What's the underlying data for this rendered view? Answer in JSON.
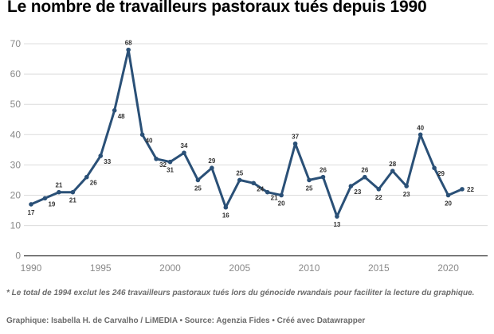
{
  "title": "Le nombre de travailleurs pastoraux tués depuis 1990",
  "footnote": "* Le total de 1994 exclut les 246 travailleurs pastoraux tués lors du génocide rwandais pour faciliter la lecture du graphique.",
  "byline": "Graphique: Isabella H. de Carvalho / LiMEDIA • Source: Agenzia Fides • Créé avec Datawrapper",
  "chart_data": {
    "type": "line",
    "title": "Le nombre de travailleurs pastoraux tués depuis 1990",
    "x": [
      1990,
      1991,
      1992,
      1993,
      1994,
      1995,
      1996,
      1997,
      1998,
      1999,
      2000,
      2001,
      2002,
      2003,
      2004,
      2005,
      2006,
      2007,
      2008,
      2009,
      2010,
      2011,
      2012,
      2013,
      2014,
      2015,
      2016,
      2017,
      2018,
      2019,
      2020,
      2021
    ],
    "values": [
      17,
      19,
      21,
      21,
      26,
      33,
      48,
      68,
      40,
      32,
      31,
      34,
      25,
      29,
      16,
      25,
      24,
      21,
      20,
      37,
      25,
      26,
      13,
      23,
      26,
      22,
      28,
      23,
      40,
      29,
      20,
      22
    ],
    "x_ticks": [
      1990,
      1995,
      2000,
      2005,
      2010,
      2015,
      2020
    ],
    "y_ticks": [
      0,
      10,
      20,
      30,
      40,
      50,
      60,
      70
    ],
    "xlim": [
      1990,
      2021
    ],
    "ylim": [
      0,
      70
    ],
    "grid": true,
    "legend": "none",
    "line_color": "#2a5077",
    "grid_color": "#dcdcdc",
    "zero_line_color": "#1f1f1f",
    "tick_label_color": "#8a8a8a",
    "point_label_color": "#333333"
  }
}
